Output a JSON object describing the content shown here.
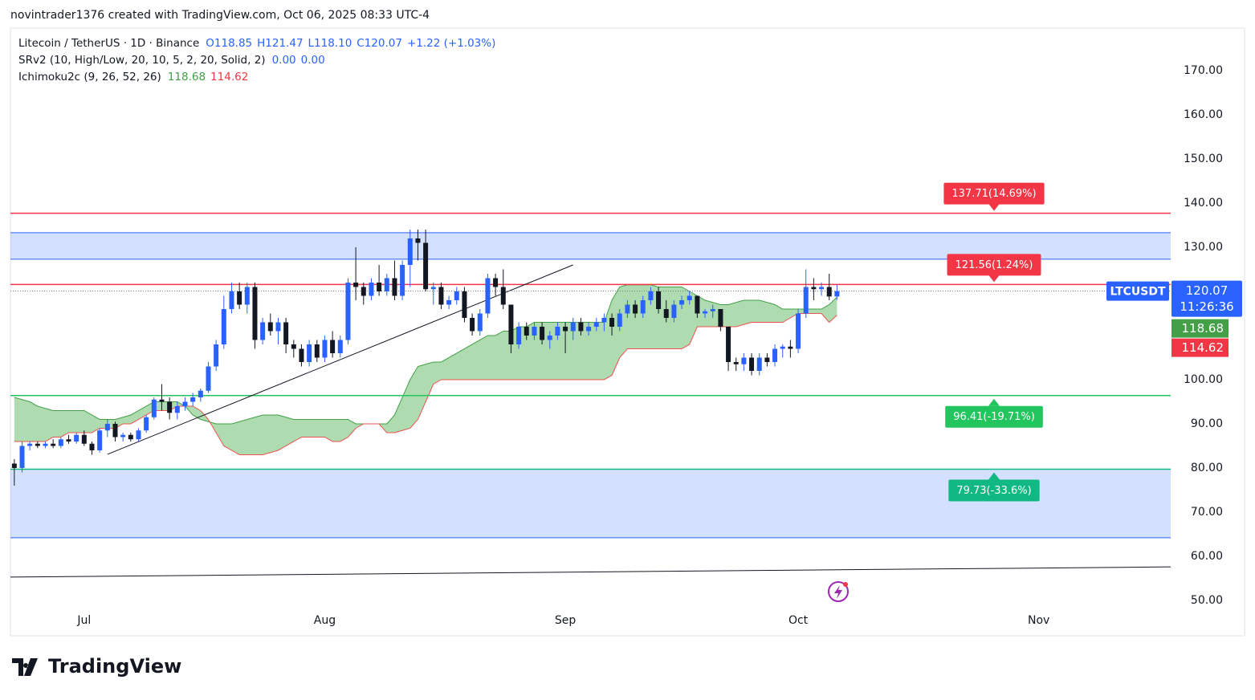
{
  "header": {
    "text": "novintrader1376 created with TradingView.com, Oct 06, 2025 08:33 UTC-4"
  },
  "legend": {
    "symbol": "Litecoin / TetherUS · 1D · Binance",
    "ohlc": [
      "O118.85",
      "H121.47",
      "L118.10",
      "C120.07",
      "+1.22 (+1.03%)"
    ],
    "srv2": {
      "title": "SRv2 (10, High/Low, 20, 10, 5, 2, 20, Solid, 2)",
      "values": [
        "0.00",
        "0.00"
      ]
    },
    "ichimoku": {
      "title": "Ichimoku2c (9, 26, 52, 26)",
      "values": [
        118.68,
        114.62
      ]
    }
  },
  "footer": {
    "brand": "TradingView"
  },
  "chart_data": {
    "type": "candlestick",
    "up_color": "#2962ff",
    "down_color": "#131722",
    "xlim": [
      -0.5,
      149
    ],
    "xticks": [
      {
        "value": 9,
        "label": "Jul"
      },
      {
        "value": 40,
        "label": "Aug"
      },
      {
        "value": 71,
        "label": "Sep"
      },
      {
        "value": 101,
        "label": "Oct"
      },
      {
        "value": 132,
        "label": "Nov"
      }
    ],
    "ylim": [
      47.45,
      179.64
    ],
    "yticks": [
      {
        "value": 170,
        "label": "170.00"
      },
      {
        "value": 160,
        "label": "160.00"
      },
      {
        "value": 150,
        "label": "150.00"
      },
      {
        "value": 140,
        "label": "140.00"
      },
      {
        "value": 130,
        "label": "130.00"
      },
      {
        "value": 100,
        "label": "100.00"
      },
      {
        "value": 90,
        "label": "90.00"
      },
      {
        "value": 80,
        "label": "80.00"
      },
      {
        "value": 70,
        "label": "70.00"
      },
      {
        "value": 60,
        "label": "60.00"
      },
      {
        "value": 50,
        "label": "50.00"
      }
    ],
    "candles": [
      [
        81,
        82,
        76,
        80
      ],
      [
        80,
        86,
        79,
        85
      ],
      [
        85,
        86,
        84,
        85.5
      ],
      [
        85.5,
        86,
        84.5,
        85
      ],
      [
        85,
        86,
        84.5,
        85.5
      ],
      [
        85.5,
        86.5,
        84.5,
        85
      ],
      [
        85,
        87,
        84.5,
        86.5
      ],
      [
        86.5,
        87.5,
        85.5,
        86
      ],
      [
        86,
        88,
        85.5,
        87.5
      ],
      [
        87.5,
        88.5,
        85,
        85.5
      ],
      [
        85.5,
        86,
        83,
        84
      ],
      [
        84,
        89,
        83.5,
        88.5
      ],
      [
        88.5,
        91,
        87,
        90
      ],
      [
        90,
        90.5,
        86,
        87
      ],
      [
        87,
        88,
        86,
        87.5
      ],
      [
        87.5,
        88,
        86,
        86.5
      ],
      [
        86.5,
        89,
        86,
        88.5
      ],
      [
        88.5,
        92,
        88,
        91.5
      ],
      [
        91.5,
        96,
        91,
        95.5
      ],
      [
        95.5,
        99,
        93,
        95
      ],
      [
        95,
        96,
        91,
        92.5
      ],
      [
        92.5,
        95,
        91,
        94
      ],
      [
        94,
        96,
        93,
        95
      ],
      [
        95,
        97,
        94,
        96
      ],
      [
        96,
        98,
        95,
        97.5
      ],
      [
        97.5,
        104,
        97,
        103
      ],
      [
        103,
        109,
        102,
        108
      ],
      [
        108,
        119,
        107,
        116
      ],
      [
        116,
        122,
        115,
        120
      ],
      [
        120,
        122,
        116,
        117
      ],
      [
        117,
        122,
        115,
        121
      ],
      [
        121,
        122,
        107,
        109
      ],
      [
        109,
        114,
        108,
        113
      ],
      [
        113,
        115,
        110,
        111
      ],
      [
        111,
        114,
        108,
        113
      ],
      [
        113,
        114,
        106,
        108
      ],
      [
        108,
        109,
        105,
        107
      ],
      [
        107,
        108,
        103,
        104
      ],
      [
        104,
        109,
        103,
        108
      ],
      [
        108,
        109,
        104,
        105
      ],
      [
        105,
        110,
        104,
        109
      ],
      [
        109,
        111,
        105,
        106
      ],
      [
        106,
        110,
        105,
        109
      ],
      [
        109,
        123,
        108,
        122
      ],
      [
        122,
        130,
        118,
        121
      ],
      [
        121,
        122,
        117,
        119
      ],
      [
        119,
        123,
        118,
        122
      ],
      [
        122,
        126,
        119,
        120
      ],
      [
        120,
        124,
        119,
        123
      ],
      [
        123,
        127,
        118,
        119
      ],
      [
        119,
        127,
        118,
        126
      ],
      [
        126,
        134,
        121,
        132
      ],
      [
        132,
        134,
        127,
        131
      ],
      [
        131,
        134,
        120,
        120.5
      ],
      [
        120.5,
        122,
        117,
        121
      ],
      [
        121,
        122,
        116,
        117
      ],
      [
        117,
        119,
        116,
        118
      ],
      [
        118,
        121,
        117,
        120
      ],
      [
        120,
        121,
        113,
        114
      ],
      [
        114,
        115,
        110,
        111
      ],
      [
        111,
        116,
        110,
        115
      ],
      [
        115,
        124,
        114,
        123
      ],
      [
        123,
        124,
        119,
        121
      ],
      [
        121,
        125,
        116,
        117
      ],
      [
        117,
        117,
        106,
        108
      ],
      [
        108,
        113,
        107,
        112
      ],
      [
        112,
        113,
        109,
        110
      ],
      [
        110,
        113,
        109,
        112
      ],
      [
        112,
        113,
        108,
        109
      ],
      [
        109,
        111,
        107,
        110
      ],
      [
        110,
        113,
        109,
        112
      ],
      [
        112,
        113,
        106,
        111
      ],
      [
        111,
        114,
        109,
        113
      ],
      [
        113,
        114,
        110,
        111
      ],
      [
        111,
        113,
        110,
        112
      ],
      [
        112,
        114,
        111,
        113
      ],
      [
        113,
        115,
        111,
        114
      ],
      [
        114,
        115,
        110,
        112
      ],
      [
        112,
        116,
        111,
        115
      ],
      [
        115,
        118,
        114,
        117
      ],
      [
        117,
        118,
        114,
        115
      ],
      [
        115,
        119,
        114,
        118
      ],
      [
        118,
        121,
        117,
        120
      ],
      [
        120,
        121,
        115,
        116
      ],
      [
        116,
        118,
        113,
        114
      ],
      [
        114,
        118,
        113,
        117
      ],
      [
        117,
        119,
        116,
        118
      ],
      [
        118,
        120,
        117,
        119
      ],
      [
        119,
        119,
        114,
        115
      ],
      [
        115,
        116,
        114,
        115.5
      ],
      [
        115.5,
        117,
        114,
        116
      ],
      [
        116,
        116,
        111,
        112
      ],
      [
        112,
        112,
        102,
        104
      ],
      [
        104,
        105,
        102,
        103.5
      ],
      [
        103.5,
        106,
        102,
        105
      ],
      [
        105,
        106,
        101,
        102
      ],
      [
        102,
        106,
        101,
        105
      ],
      [
        105,
        106,
        103,
        104
      ],
      [
        104,
        108,
        103,
        107
      ],
      [
        107,
        108,
        105,
        107.5
      ],
      [
        107.5,
        109,
        105,
        107
      ],
      [
        107,
        116,
        106,
        115
      ],
      [
        115,
        125,
        114,
        121
      ],
      [
        121,
        123,
        118,
        120.5
      ],
      [
        120.5,
        122,
        119,
        121
      ],
      [
        121,
        124,
        118,
        118.85
      ],
      [
        118.85,
        121.47,
        118.1,
        120.07
      ]
    ],
    "cloud": {
      "color": "#43a047",
      "fill": "rgba(76,175,80,0.45)",
      "line_a_color": "#43a047",
      "line_b_color": "#ef5350",
      "lead_a": [
        96,
        95.5,
        95,
        94,
        93.5,
        93,
        93,
        93,
        93,
        93,
        92,
        91,
        91,
        91,
        91.5,
        92,
        93,
        94,
        95,
        95,
        95,
        95,
        94,
        92,
        91,
        90.5,
        90,
        90,
        90,
        90.5,
        91,
        91.5,
        92,
        92,
        92,
        91.5,
        91,
        91,
        91,
        91,
        91,
        91,
        91,
        91,
        90,
        90,
        90,
        90,
        90,
        92,
        96,
        100,
        103,
        103.5,
        104,
        104,
        105,
        106,
        107,
        108,
        109,
        110,
        110,
        111,
        111,
        112,
        112,
        113,
        113,
        113,
        113,
        113,
        113,
        113,
        113,
        113,
        113,
        118,
        121,
        121.5,
        121.5,
        121.5,
        121.5,
        121,
        121,
        121,
        121,
        120,
        119,
        118,
        117.5,
        117,
        117,
        117.5,
        118,
        118,
        118,
        117.5,
        117,
        116,
        116,
        116,
        116,
        116,
        116,
        117,
        118.68
      ],
      "lead_b": [
        86,
        86,
        86,
        86,
        86,
        87,
        87,
        88,
        88,
        88,
        88,
        89,
        89,
        89,
        90,
        90,
        91,
        92,
        93,
        93,
        93,
        94,
        94,
        94,
        93,
        91,
        88,
        85,
        84,
        83,
        83,
        83,
        83,
        83.5,
        84,
        85,
        86,
        87,
        87,
        87,
        87,
        86,
        86,
        87,
        89,
        90,
        90,
        90,
        88,
        88,
        88.5,
        89,
        91,
        95,
        99,
        100,
        100,
        100,
        100,
        100,
        100,
        100,
        100,
        100,
        100,
        100,
        100,
        100,
        100,
        100,
        100,
        100,
        100,
        100,
        100,
        100,
        100,
        101,
        105,
        107,
        107,
        107,
        107,
        107,
        107,
        107,
        107,
        108,
        112,
        112,
        112,
        112,
        112,
        112,
        112.5,
        113,
        113,
        113,
        113,
        113,
        114,
        115,
        115,
        115,
        115,
        113,
        114.62
      ]
    },
    "levels": [
      {
        "value": 137.71,
        "label": "137.71(14.69%)",
        "color": "#f23645",
        "side": "above"
      },
      {
        "value": 121.56,
        "label": "121.56(1.24%)",
        "color": "#f23645",
        "side": "above"
      },
      {
        "value": 96.41,
        "label": "96.41(-19.71%)",
        "color": "#22c55e",
        "side": "below"
      },
      {
        "value": 79.73,
        "label": "79.73(-33.6%)",
        "color": "#10b981",
        "side": "below"
      }
    ],
    "zones": [
      {
        "range": [
          127.3,
          133.3
        ],
        "color": "rgba(41,98,255,0.2)"
      },
      {
        "range": [
          64.2,
          79.73
        ],
        "color": "rgba(41,98,255,0.2)"
      }
    ],
    "trendlines": [
      {
        "x": [
          12,
          72
        ],
        "y": [
          83.1,
          126
        ]
      },
      {
        "x": [
          -0.5,
          149
        ],
        "y": [
          55.3,
          57.6
        ]
      }
    ],
    "last_price": {
      "symbol": "LTCUSDT",
      "value": 120.07,
      "countdown": "11:26:36",
      "color": "#2962ff"
    },
    "indicator_badges": [
      {
        "color": "#43a047"
      },
      {
        "color": "#f23645"
      }
    ]
  }
}
